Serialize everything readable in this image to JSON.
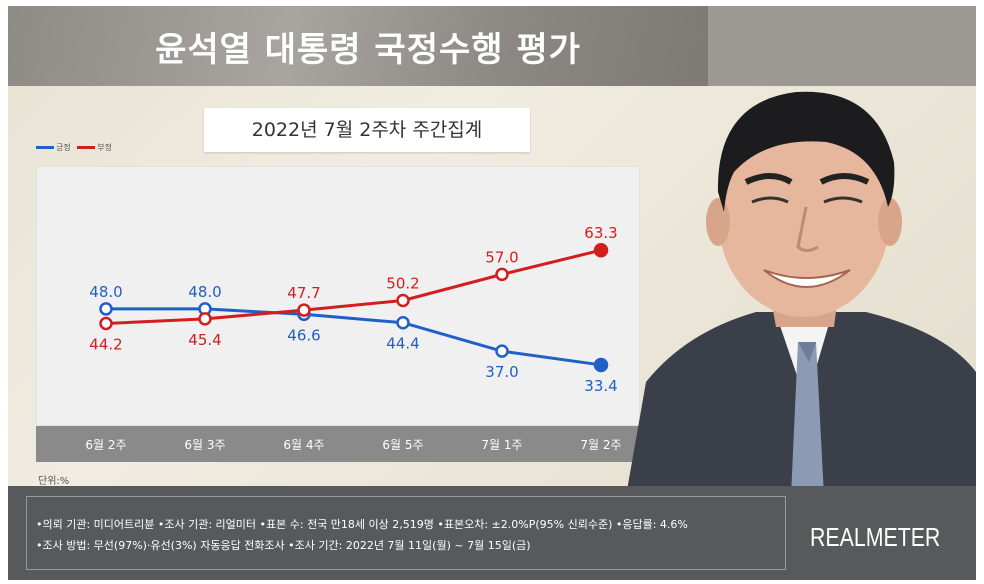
{
  "title": "윤석열 대통령 국정수행 평가",
  "subtitle": "2022년 7월 2주차 주간집계",
  "unit": "단위:%",
  "legend": [
    {
      "label": "긍정",
      "color": "#1f5fc7"
    },
    {
      "label": "부정",
      "color": "#d21e1e"
    }
  ],
  "chart_data": {
    "type": "line",
    "categories": [
      "6월 2주",
      "6월 3주",
      "6월 4주",
      "6월 5주",
      "7월 1주",
      "7월 2주"
    ],
    "series": [
      {
        "name": "긍정",
        "color": "#1f5fc7",
        "values": [
          48.0,
          48.0,
          46.6,
          44.4,
          37.0,
          33.4
        ]
      },
      {
        "name": "부정",
        "color": "#d21e1e",
        "values": [
          44.2,
          45.4,
          47.7,
          50.2,
          57.0,
          63.3
        ]
      }
    ],
    "value_labels": {
      "긍정": [
        "48.0",
        "48.0",
        "46.6",
        "44.4",
        "37.0",
        "33.4"
      ],
      "부정": [
        "44.2",
        "45.4",
        "47.7",
        "50.2",
        "57.0",
        "63.3"
      ]
    }
  },
  "footer": {
    "line1": "•의뢰 기관: 미디어트리뷴 •조사 기관: 리얼미터 •표본 수: 전국 만18세 이상 2,519명 •표본오차: ±2.0%P(95% 신뢰수준) •응답률: 4.6%",
    "line2": "•조사 방법: 무선(97%)·유선(3%) 자동응답 전화조사 •조사 기간: 2022년 7월 11일(월) ~ 7월 15일(금)",
    "logo": "REALMETER"
  }
}
